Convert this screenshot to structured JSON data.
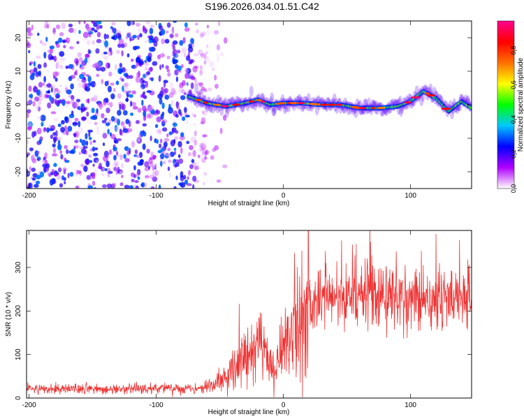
{
  "title": "S196.2026.034.01.51.C42",
  "colorbar": {
    "label": "Normalized spectral amplitude",
    "range": [
      0,
      0.97
    ],
    "ticks": [
      0.0,
      0.2,
      0.4,
      0.6,
      0.8
    ],
    "tick_labels": [
      "0.0",
      "0.2",
      "0.4",
      "0.6",
      "0.8"
    ],
    "colors": [
      "#ffffff",
      "#b000ff",
      "#0000ff",
      "#00c8ff",
      "#00ff00",
      "#ffff00",
      "#ff7000",
      "#ff0000",
      "#ff0090"
    ]
  },
  "chart_data": [
    {
      "type": "heatmap",
      "name": "spectrogram",
      "xlabel": "Height of straight line (km)",
      "ylabel": "Frequency (Hz)",
      "xlim": [
        -202,
        148
      ],
      "ylim": [
        -25,
        25
      ],
      "x_ticks": [
        -200,
        -100,
        0,
        100
      ],
      "x_tick_labels": [
        "-200",
        "-100",
        "0",
        "100"
      ],
      "y_ticks": [
        -20,
        -10,
        0,
        10,
        20
      ],
      "y_tick_labels": [
        "-20",
        "-10",
        "0",
        "10",
        "20"
      ],
      "noise_region_x": [
        -202,
        -60
      ],
      "signal_start_x": -75,
      "signal_frequency_hz": 0,
      "frequency_trace": {
        "x": [
          -75,
          -60,
          -45,
          -30,
          -20,
          -10,
          0,
          15,
          30,
          45,
          60,
          75,
          90,
          100,
          110,
          120,
          130,
          140,
          148
        ],
        "y": [
          2.5,
          0.5,
          -0.5,
          0.5,
          1.5,
          0,
          0.5,
          0.5,
          0,
          0,
          -1,
          -1,
          -0.5,
          1,
          4,
          2,
          -2,
          1,
          -1
        ]
      }
    },
    {
      "type": "line",
      "name": "snr",
      "xlabel": "Height of straight line (km)",
      "ylabel": "SNR (10 * v/v)",
      "xlim": [
        -202,
        148
      ],
      "ylim": [
        0,
        385
      ],
      "x_ticks": [
        -200,
        -100,
        0,
        100
      ],
      "x_tick_labels": [
        "-200",
        "-100",
        "0",
        "100"
      ],
      "y_ticks": [
        0,
        100,
        200,
        300
      ],
      "y_tick_labels": [
        "0",
        "100",
        "200",
        "300"
      ],
      "color": "#ee3333",
      "series": [
        {
          "name": "SNR",
          "x": [
            -202,
            -180,
            -160,
            -140,
            -120,
            -100,
            -80,
            -65,
            -55,
            -45,
            -40,
            -35,
            -30,
            -25,
            -20,
            -15,
            -10,
            -7,
            -5,
            0,
            10,
            20,
            25,
            35,
            50,
            70,
            90,
            110,
            130,
            148
          ],
          "y": [
            20,
            22,
            21,
            20,
            22,
            21,
            22,
            24,
            30,
            45,
            70,
            90,
            100,
            110,
            120,
            105,
            80,
            35,
            95,
            130,
            170,
            205,
            220,
            228,
            232,
            235,
            232,
            230,
            232,
            228
          ]
        }
      ]
    }
  ]
}
